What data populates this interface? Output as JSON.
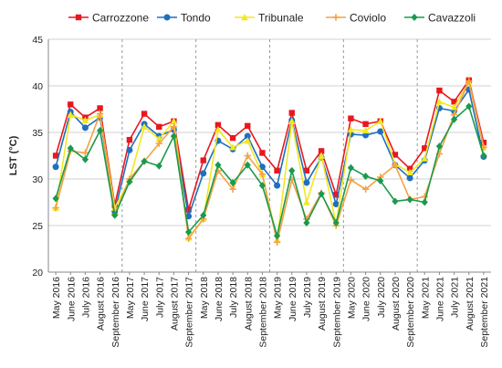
{
  "chart_data": {
    "type": "line",
    "ylabel": "LST (°C)",
    "ylim": [
      20,
      45
    ],
    "yticks": [
      20,
      25,
      30,
      35,
      40,
      45
    ],
    "grid": "horizontal",
    "legend_position": "top",
    "categories": [
      "May 2016",
      "June 2016",
      "July 2016",
      "August 2016",
      "September 2016",
      "May 2017",
      "June 2017",
      "July 2017",
      "August 2017",
      "September 2017",
      "May 2018",
      "June 2018",
      "July 2018",
      "August 2018",
      "September 2018",
      "May 2019",
      "June 2019",
      "July 2019",
      "August 2019",
      "September 2019",
      "May 2020",
      "June 2020",
      "July 2020",
      "August 2020",
      "September 2020",
      "May 2021",
      "June 2021",
      "July 2021",
      "August 2021",
      "September 2021"
    ],
    "year_separators_after": [
      "September 2016",
      "September 2017",
      "September 2018",
      "September 2019",
      "September 2020"
    ],
    "series": [
      {
        "name": "Carrozzone",
        "color": "#e8181f",
        "marker": "square",
        "values": [
          32.5,
          38.0,
          36.6,
          37.6,
          27.2,
          34.2,
          37.0,
          35.6,
          36.2,
          26.7,
          32.0,
          35.8,
          34.4,
          35.7,
          32.8,
          30.9,
          37.1,
          30.9,
          33.0,
          28.3,
          36.5,
          35.9,
          36.2,
          32.6,
          31.1,
          33.3,
          39.5,
          38.3,
          40.6,
          33.9
        ]
      },
      {
        "name": "Tondo",
        "color": "#1f6fc0",
        "marker": "circle",
        "values": [
          31.3,
          37.2,
          35.5,
          36.6,
          26.5,
          33.1,
          35.9,
          34.6,
          35.3,
          26.0,
          30.6,
          34.1,
          33.2,
          34.6,
          31.3,
          29.3,
          36.3,
          29.6,
          32.3,
          27.3,
          34.8,
          34.7,
          35.1,
          31.5,
          30.1,
          32.0,
          37.6,
          37.3,
          39.6,
          32.4
        ]
      },
      {
        "name": "Tribunale",
        "color": "#f2e820",
        "marker": "triangle",
        "values": [
          26.9,
          36.9,
          36.3,
          36.9,
          26.9,
          29.9,
          35.6,
          34.3,
          36.2,
          23.7,
          25.7,
          35.3,
          33.4,
          34.1,
          30.5,
          23.5,
          36.2,
          27.5,
          32.5,
          25.2,
          35.3,
          35.2,
          36.2,
          31.6,
          30.7,
          32.2,
          38.3,
          37.7,
          40.4,
          33.4
        ]
      },
      {
        "name": "Coviolo",
        "color": "#f4a244",
        "marker": "plus",
        "values": [
          26.9,
          33.0,
          32.8,
          37.0,
          26.2,
          30.0,
          31.9,
          33.8,
          35.6,
          23.6,
          25.7,
          30.9,
          28.9,
          32.5,
          30.5,
          23.2,
          29.9,
          25.7,
          28.5,
          25.0,
          29.9,
          28.9,
          30.2,
          31.5,
          27.8,
          28.1,
          32.7,
          36.9,
          40.5,
          33.4
        ]
      },
      {
        "name": "Cavazzoli",
        "color": "#1a9a4c",
        "marker": "diamond",
        "values": [
          27.9,
          33.3,
          32.1,
          35.2,
          26.1,
          29.7,
          31.9,
          31.4,
          34.6,
          24.3,
          26.1,
          31.5,
          29.6,
          31.5,
          29.3,
          23.9,
          30.9,
          25.3,
          28.4,
          25.3,
          31.2,
          30.3,
          29.8,
          27.6,
          27.8,
          27.5,
          33.5,
          36.4,
          37.8,
          32.5
        ]
      }
    ]
  }
}
